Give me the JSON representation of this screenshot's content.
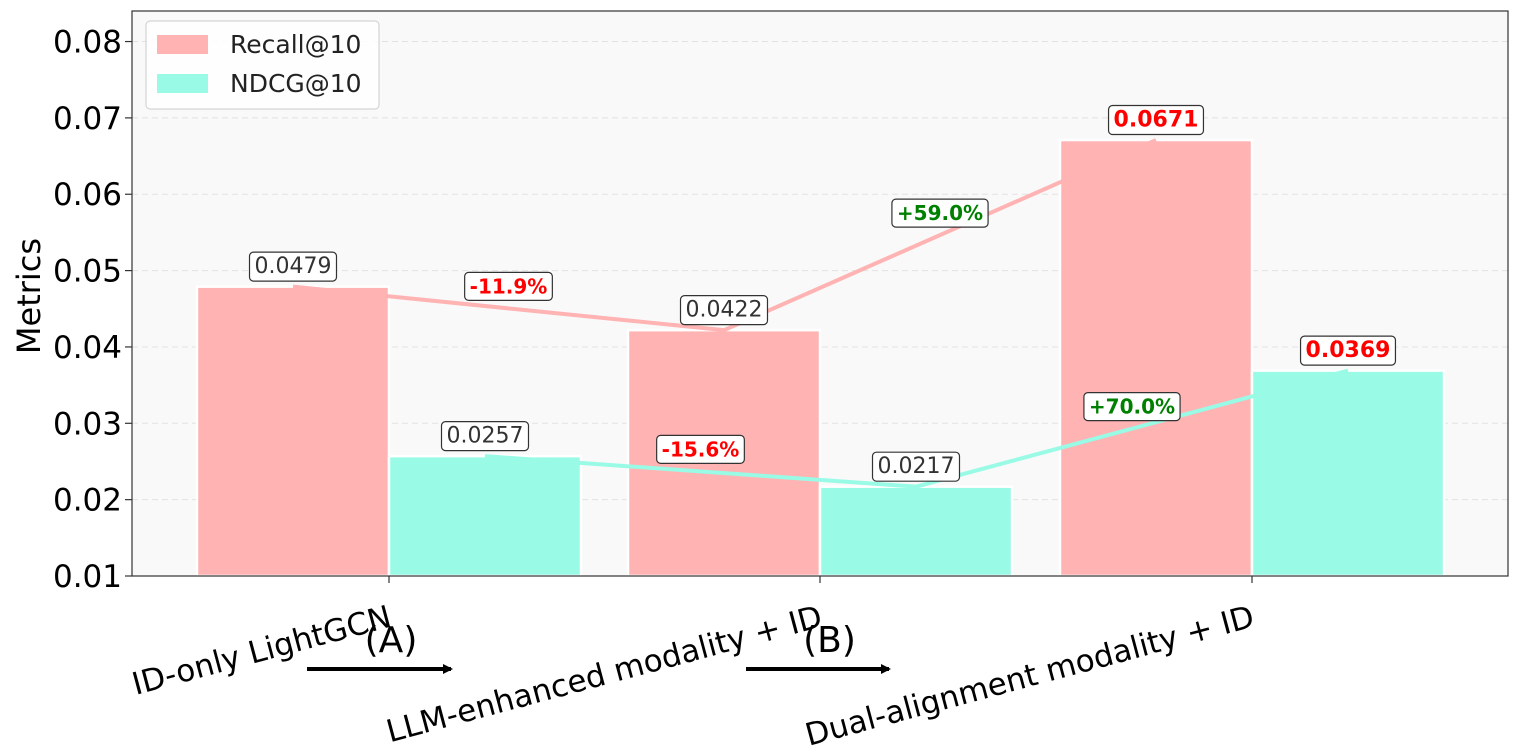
{
  "chart_data": {
    "type": "bar",
    "ylabel": "Metrics",
    "ylim": [
      0.01,
      0.084
    ],
    "yticks": [
      "0.01",
      "0.02",
      "0.03",
      "0.04",
      "0.05",
      "0.06",
      "0.07",
      "0.08"
    ],
    "ytick_values": [
      0.01,
      0.02,
      0.03,
      0.04,
      0.05,
      0.06,
      0.07,
      0.08
    ],
    "grid": true,
    "legend_position": "top-left",
    "categories": [
      "ID-only LightGCN",
      "LLM-enhanced modality + ID",
      "Dual-alignment modality + ID"
    ],
    "series": [
      {
        "name": "Recall@10",
        "color": "#ffb3b3",
        "values": [
          0.0479,
          0.0422,
          0.0671
        ],
        "labels": [
          "0.0479",
          "0.0422",
          "0.0671"
        ]
      },
      {
        "name": "NDCG@10",
        "color": "#99fae6",
        "values": [
          0.0257,
          0.0217,
          0.0369
        ],
        "labels": [
          "0.0257",
          "0.0217",
          "0.0369"
        ]
      }
    ],
    "change_labels": [
      {
        "series": 0,
        "from": 0,
        "to": 1,
        "text": "-11.9%",
        "color": "#ff0000"
      },
      {
        "series": 0,
        "from": 1,
        "to": 2,
        "text": "+59.0%",
        "color": "#008000"
      },
      {
        "series": 1,
        "from": 0,
        "to": 1,
        "text": "-15.6%",
        "color": "#ff0000"
      },
      {
        "series": 1,
        "from": 1,
        "to": 2,
        "text": "+70.0%",
        "color": "#008000"
      }
    ],
    "steps": [
      {
        "label": "(A)"
      },
      {
        "label": "(B)"
      }
    ],
    "highlight_color": "#ff0000",
    "value_text_color": "#333333"
  }
}
